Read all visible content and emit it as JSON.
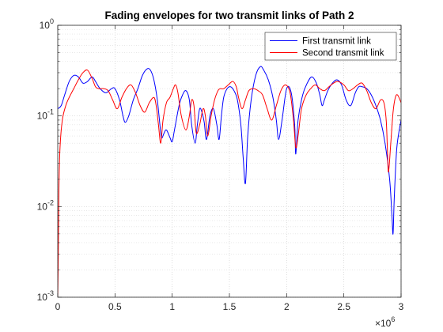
{
  "chart_data": {
    "type": "line",
    "title": "Fading envelopes for two transmit links of Path 2",
    "xlabel": "",
    "ylabel": "",
    "x_scale_note": "×10⁶",
    "x_exponent_base": "×10",
    "x_exponent_power": "6",
    "xlim": [
      0,
      3
    ],
    "ylim": [
      0.001,
      1
    ],
    "y_scale": "log",
    "grid": true,
    "minor_grid": true,
    "legend_position": "top-right",
    "x_tick_labels": [
      "0",
      "0.5",
      "1",
      "1.5",
      "2",
      "2.5",
      "3"
    ],
    "x_tick_values": [
      0,
      0.5,
      1,
      1.5,
      2,
      2.5,
      3
    ],
    "y_ticks": [
      {
        "value": 0.001,
        "base": "10",
        "exp": "-3"
      },
      {
        "value": 0.01,
        "base": "10",
        "exp": "-2"
      },
      {
        "value": 0.1,
        "base": "10",
        "exp": "-1"
      },
      {
        "value": 1,
        "base": "10",
        "exp": "0"
      }
    ],
    "series": [
      {
        "name": "First transmit link",
        "color": "#0000ff",
        "x": [
          0,
          0.03,
          0.06,
          0.1,
          0.14,
          0.18,
          0.22,
          0.26,
          0.3,
          0.33,
          0.37,
          0.42,
          0.47,
          0.5,
          0.54,
          0.57,
          0.59,
          0.62,
          0.66,
          0.7,
          0.74,
          0.78,
          0.81,
          0.84,
          0.87,
          0.9,
          0.91,
          0.93,
          0.95,
          0.98,
          1.0,
          1.02,
          1.06,
          1.09,
          1.12,
          1.15,
          1.17,
          1.2,
          1.22,
          1.24,
          1.26,
          1.28,
          1.3,
          1.33,
          1.36,
          1.39,
          1.41,
          1.43,
          1.45,
          1.48,
          1.51,
          1.54,
          1.57,
          1.6,
          1.62,
          1.64,
          1.66,
          1.69,
          1.73,
          1.77,
          1.8,
          1.84,
          1.88,
          1.91,
          1.93,
          1.96,
          2.0,
          2.04,
          2.07,
          2.08,
          2.1,
          2.14,
          2.18,
          2.22,
          2.26,
          2.29,
          2.31,
          2.33,
          2.36,
          2.4,
          2.44,
          2.48,
          2.52,
          2.56,
          2.6,
          2.63,
          2.66,
          2.7,
          2.74,
          2.78,
          2.82,
          2.86,
          2.9,
          2.92,
          2.93,
          2.94,
          2.96,
          2.98,
          3.0
        ],
        "y": [
          0.12,
          0.13,
          0.17,
          0.24,
          0.28,
          0.27,
          0.23,
          0.24,
          0.27,
          0.24,
          0.2,
          0.18,
          0.2,
          0.2,
          0.15,
          0.1,
          0.085,
          0.1,
          0.15,
          0.2,
          0.28,
          0.33,
          0.32,
          0.25,
          0.15,
          0.065,
          0.057,
          0.065,
          0.07,
          0.058,
          0.052,
          0.07,
          0.13,
          0.17,
          0.19,
          0.15,
          0.08,
          0.05,
          0.08,
          0.12,
          0.11,
          0.085,
          0.055,
          0.1,
          0.12,
          0.08,
          0.055,
          0.1,
          0.16,
          0.2,
          0.21,
          0.19,
          0.15,
          0.08,
          0.035,
          0.018,
          0.06,
          0.15,
          0.28,
          0.35,
          0.32,
          0.25,
          0.16,
          0.09,
          0.055,
          0.09,
          0.2,
          0.18,
          0.08,
          0.038,
          0.09,
          0.17,
          0.23,
          0.27,
          0.23,
          0.17,
          0.13,
          0.15,
          0.19,
          0.23,
          0.25,
          0.22,
          0.15,
          0.13,
          0.18,
          0.21,
          0.21,
          0.2,
          0.17,
          0.13,
          0.09,
          0.05,
          0.02,
          0.008,
          0.005,
          0.012,
          0.04,
          0.065,
          0.09
        ]
      },
      {
        "name": "Second transmit link",
        "color": "#ff0000",
        "x": [
          0,
          0.005,
          0.01,
          0.02,
          0.04,
          0.07,
          0.1,
          0.14,
          0.18,
          0.22,
          0.26,
          0.3,
          0.33,
          0.36,
          0.4,
          0.44,
          0.48,
          0.52,
          0.56,
          0.6,
          0.64,
          0.68,
          0.72,
          0.76,
          0.8,
          0.84,
          0.86,
          0.88,
          0.9,
          0.92,
          0.95,
          0.98,
          1.01,
          1.03,
          1.05,
          1.08,
          1.12,
          1.15,
          1.17,
          1.19,
          1.21,
          1.24,
          1.27,
          1.29,
          1.31,
          1.34,
          1.37,
          1.4,
          1.42,
          1.45,
          1.49,
          1.53,
          1.56,
          1.58,
          1.61,
          1.64,
          1.67,
          1.71,
          1.75,
          1.79,
          1.83,
          1.87,
          1.91,
          1.95,
          1.99,
          2.03,
          2.06,
          2.08,
          2.1,
          2.13,
          2.17,
          2.21,
          2.25,
          2.29,
          2.33,
          2.37,
          2.41,
          2.45,
          2.5,
          2.54,
          2.58,
          2.62,
          2.66,
          2.7,
          2.74,
          2.78,
          2.82,
          2.85,
          2.87,
          2.88,
          2.89,
          2.91,
          2.93,
          2.95,
          2.97,
          3.0
        ],
        "y": [
          0.001,
          0.003,
          0.015,
          0.045,
          0.09,
          0.13,
          0.16,
          0.2,
          0.25,
          0.3,
          0.32,
          0.26,
          0.21,
          0.2,
          0.2,
          0.19,
          0.15,
          0.12,
          0.16,
          0.2,
          0.22,
          0.18,
          0.13,
          0.11,
          0.14,
          0.16,
          0.13,
          0.08,
          0.05,
          0.09,
          0.14,
          0.16,
          0.2,
          0.22,
          0.18,
          0.1,
          0.07,
          0.1,
          0.15,
          0.13,
          0.065,
          0.08,
          0.12,
          0.1,
          0.06,
          0.1,
          0.15,
          0.19,
          0.2,
          0.2,
          0.22,
          0.24,
          0.21,
          0.16,
          0.12,
          0.15,
          0.19,
          0.2,
          0.19,
          0.17,
          0.12,
          0.09,
          0.13,
          0.19,
          0.22,
          0.18,
          0.09,
          0.045,
          0.06,
          0.12,
          0.17,
          0.2,
          0.22,
          0.2,
          0.19,
          0.21,
          0.23,
          0.24,
          0.22,
          0.19,
          0.2,
          0.22,
          0.23,
          0.19,
          0.14,
          0.12,
          0.15,
          0.14,
          0.09,
          0.045,
          0.024,
          0.05,
          0.11,
          0.16,
          0.17,
          0.14
        ]
      }
    ]
  }
}
